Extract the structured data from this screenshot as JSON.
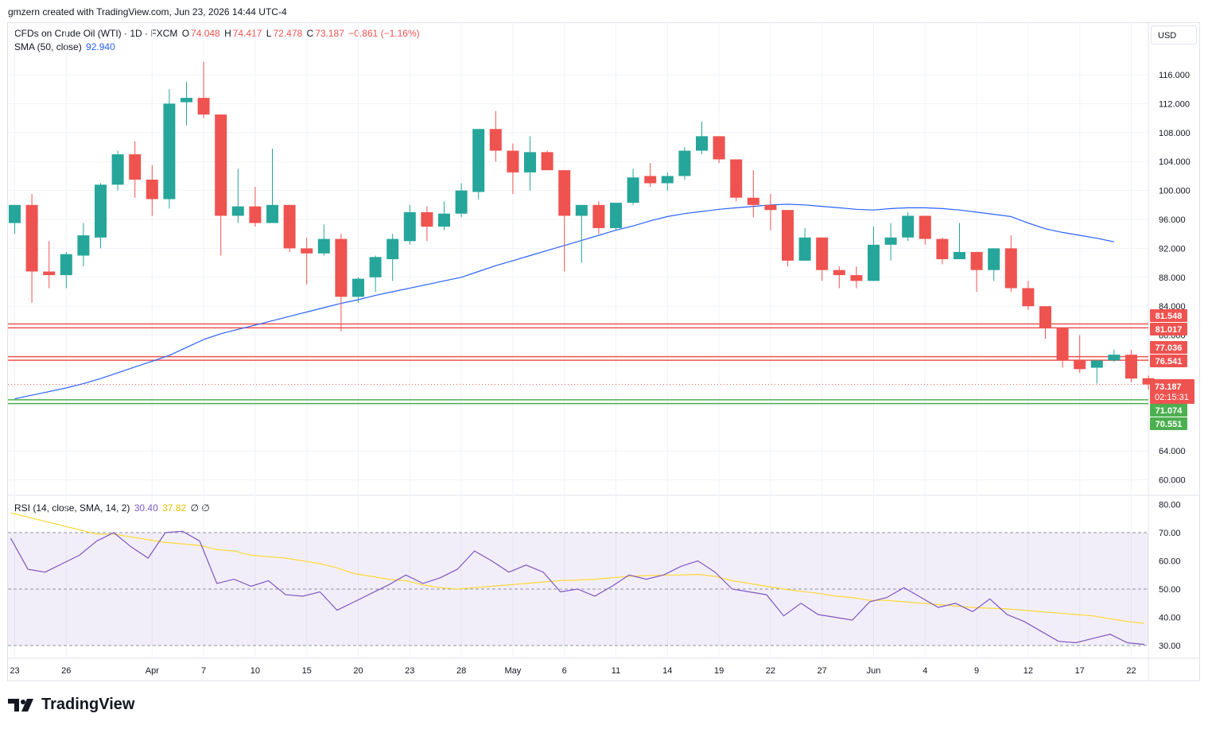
{
  "header": {
    "attribution": "gmzern created with TradingView.com, Jun 23, 2026 14:44 UTC-4"
  },
  "legend": {
    "symbol": "CFDs on Crude Oil (WTI) · 1D · FXCM",
    "o_label": "O",
    "o": "74.048",
    "h_label": "H",
    "h": "74.417",
    "l_label": "L",
    "l": "72.478",
    "c_label": "C",
    "c": "73.187",
    "change": "−0.861 (−1.16%)",
    "sma_label": "SMA (50, close)",
    "sma_value": "92.940",
    "rsi_label": "RSI (14, close, SMA, 14, 2)",
    "rsi_value": "30.40",
    "rsi_ma_value": "37.82",
    "rsi_extra": "∅ ∅"
  },
  "currency": "USD",
  "brand": "TradingView",
  "colors": {
    "up": "#26a69a",
    "down": "#ef5350",
    "sma": "#2962ff",
    "rsi": "#7e57c2",
    "rsi_ma": "#fdd835",
    "resistance": "#ef5350",
    "support": "#4caf50"
  },
  "chart_data": {
    "type": "candlestick",
    "price_axis": {
      "ticks": [
        "116.000",
        "112.000",
        "108.000",
        "104.000",
        "100.000",
        "96.000",
        "92.000",
        "88.000",
        "84.000",
        "80.000",
        "64.000",
        "60.000"
      ],
      "range": [
        58,
        122
      ]
    },
    "x_labels": [
      {
        "label": "23",
        "i": 0
      },
      {
        "label": "26",
        "i": 3
      },
      {
        "label": "Apr",
        "i": 8
      },
      {
        "label": "7",
        "i": 11
      },
      {
        "label": "10",
        "i": 14
      },
      {
        "label": "15",
        "i": 17
      },
      {
        "label": "20",
        "i": 20
      },
      {
        "label": "23",
        "i": 23
      },
      {
        "label": "28",
        "i": 26
      },
      {
        "label": "May",
        "i": 29
      },
      {
        "label": "6",
        "i": 32
      },
      {
        "label": "11",
        "i": 35
      },
      {
        "label": "14",
        "i": 38
      },
      {
        "label": "19",
        "i": 41
      },
      {
        "label": "22",
        "i": 44
      },
      {
        "label": "27",
        "i": 47
      },
      {
        "label": "Jun",
        "i": 50
      },
      {
        "label": "4",
        "i": 53
      },
      {
        "label": "9",
        "i": 56
      },
      {
        "label": "12",
        "i": 59
      },
      {
        "label": "17",
        "i": 62
      },
      {
        "label": "22",
        "i": 65
      }
    ],
    "candles": [
      {
        "o": 95.5,
        "h": 98.0,
        "l": 94.0,
        "c": 98.0
      },
      {
        "o": 98.0,
        "h": 99.5,
        "l": 84.5,
        "c": 88.8
      },
      {
        "o": 88.8,
        "h": 93.0,
        "l": 86.5,
        "c": 88.3
      },
      {
        "o": 88.3,
        "h": 91.5,
        "l": 86.5,
        "c": 91.2
      },
      {
        "o": 91.0,
        "h": 95.5,
        "l": 89.5,
        "c": 93.8
      },
      {
        "o": 93.5,
        "h": 101.0,
        "l": 92.0,
        "c": 100.8
      },
      {
        "o": 100.8,
        "h": 105.5,
        "l": 100.0,
        "c": 105.0
      },
      {
        "o": 105.0,
        "h": 106.8,
        "l": 99.0,
        "c": 101.5
      },
      {
        "o": 101.5,
        "h": 103.5,
        "l": 96.5,
        "c": 98.8
      },
      {
        "o": 98.8,
        "h": 114.0,
        "l": 97.5,
        "c": 112.0
      },
      {
        "o": 112.2,
        "h": 115.0,
        "l": 109.0,
        "c": 112.8
      },
      {
        "o": 112.8,
        "h": 117.8,
        "l": 110.0,
        "c": 110.5
      },
      {
        "o": 110.5,
        "h": 110.5,
        "l": 91.0,
        "c": 96.5
      },
      {
        "o": 96.5,
        "h": 103.0,
        "l": 95.5,
        "c": 97.8
      },
      {
        "o": 97.8,
        "h": 100.5,
        "l": 95.0,
        "c": 95.5
      },
      {
        "o": 95.5,
        "h": 105.8,
        "l": 95.5,
        "c": 98.0
      },
      {
        "o": 98.0,
        "h": 98.0,
        "l": 91.5,
        "c": 92.0
      },
      {
        "o": 92.0,
        "h": 93.5,
        "l": 87.0,
        "c": 91.3
      },
      {
        "o": 91.3,
        "h": 95.3,
        "l": 91.0,
        "c": 93.3
      },
      {
        "o": 93.3,
        "h": 94.0,
        "l": 80.5,
        "c": 85.3
      },
      {
        "o": 85.3,
        "h": 88.0,
        "l": 84.5,
        "c": 87.8
      },
      {
        "o": 88.0,
        "h": 91.0,
        "l": 86.0,
        "c": 90.8
      },
      {
        "o": 90.5,
        "h": 94.0,
        "l": 87.5,
        "c": 93.3
      },
      {
        "o": 93.0,
        "h": 98.0,
        "l": 92.5,
        "c": 97.0
      },
      {
        "o": 97.0,
        "h": 97.8,
        "l": 93.0,
        "c": 95.0
      },
      {
        "o": 95.0,
        "h": 98.5,
        "l": 94.5,
        "c": 96.8
      },
      {
        "o": 96.8,
        "h": 101.0,
        "l": 96.3,
        "c": 100.0
      },
      {
        "o": 99.8,
        "h": 108.5,
        "l": 98.8,
        "c": 108.5
      },
      {
        "o": 108.5,
        "h": 111.0,
        "l": 104.0,
        "c": 105.5
      },
      {
        "o": 105.5,
        "h": 106.5,
        "l": 99.5,
        "c": 102.5
      },
      {
        "o": 102.5,
        "h": 107.5,
        "l": 100.0,
        "c": 105.3
      },
      {
        "o": 105.3,
        "h": 105.5,
        "l": 102.8,
        "c": 102.8
      },
      {
        "o": 102.8,
        "h": 102.8,
        "l": 88.8,
        "c": 96.5
      },
      {
        "o": 96.5,
        "h": 98.0,
        "l": 90.0,
        "c": 98.0
      },
      {
        "o": 98.0,
        "h": 98.5,
        "l": 94.0,
        "c": 94.8
      },
      {
        "o": 94.8,
        "h": 98.0,
        "l": 94.5,
        "c": 98.3
      },
      {
        "o": 98.3,
        "h": 103.0,
        "l": 98.0,
        "c": 101.8
      },
      {
        "o": 102.0,
        "h": 103.8,
        "l": 100.5,
        "c": 101.0
      },
      {
        "o": 101.0,
        "h": 102.5,
        "l": 100.0,
        "c": 102.0
      },
      {
        "o": 102.0,
        "h": 106.0,
        "l": 101.5,
        "c": 105.5
      },
      {
        "o": 105.5,
        "h": 109.5,
        "l": 105.0,
        "c": 107.5
      },
      {
        "o": 107.5,
        "h": 107.5,
        "l": 103.8,
        "c": 104.3
      },
      {
        "o": 104.3,
        "h": 104.3,
        "l": 98.5,
        "c": 99.0
      },
      {
        "o": 99.0,
        "h": 102.8,
        "l": 96.3,
        "c": 98.0
      },
      {
        "o": 98.0,
        "h": 99.5,
        "l": 94.5,
        "c": 97.3
      },
      {
        "o": 97.3,
        "h": 97.3,
        "l": 89.5,
        "c": 90.3
      },
      {
        "o": 90.3,
        "h": 94.8,
        "l": 90.3,
        "c": 93.5
      },
      {
        "o": 93.5,
        "h": 93.5,
        "l": 87.5,
        "c": 89.0
      },
      {
        "o": 89.0,
        "h": 89.5,
        "l": 86.5,
        "c": 88.3
      },
      {
        "o": 88.3,
        "h": 89.5,
        "l": 86.5,
        "c": 87.5
      },
      {
        "o": 87.5,
        "h": 95.0,
        "l": 87.5,
        "c": 92.5
      },
      {
        "o": 92.5,
        "h": 95.5,
        "l": 90.3,
        "c": 93.5
      },
      {
        "o": 93.5,
        "h": 97.0,
        "l": 93.0,
        "c": 96.5
      },
      {
        "o": 96.5,
        "h": 96.5,
        "l": 92.5,
        "c": 93.3
      },
      {
        "o": 93.3,
        "h": 93.5,
        "l": 89.8,
        "c": 90.5
      },
      {
        "o": 90.5,
        "h": 95.5,
        "l": 90.5,
        "c": 91.5
      },
      {
        "o": 91.5,
        "h": 91.5,
        "l": 86.0,
        "c": 89.0
      },
      {
        "o": 89.0,
        "h": 92.0,
        "l": 87.5,
        "c": 92.0
      },
      {
        "o": 92.0,
        "h": 93.8,
        "l": 86.0,
        "c": 86.5
      },
      {
        "o": 86.5,
        "h": 87.5,
        "l": 83.5,
        "c": 84.0
      },
      {
        "o": 84.0,
        "h": 84.0,
        "l": 79.5,
        "c": 81.0
      },
      {
        "o": 81.0,
        "h": 81.0,
        "l": 75.5,
        "c": 76.5
      },
      {
        "o": 76.5,
        "h": 80.0,
        "l": 74.8,
        "c": 75.3
      },
      {
        "o": 75.5,
        "h": 76.5,
        "l": 73.3,
        "c": 76.5
      },
      {
        "o": 76.5,
        "h": 78.0,
        "l": 76.3,
        "c": 77.3
      },
      {
        "o": 77.3,
        "h": 78.0,
        "l": 73.5,
        "c": 74.0
      },
      {
        "o": 74.048,
        "h": 74.417,
        "l": 72.478,
        "c": 73.187
      }
    ],
    "sma": {
      "name": "SMA (50, close)",
      "values": [
        71.2,
        71.7,
        72.2,
        72.7,
        73.3,
        74.0,
        74.8,
        75.6,
        76.4,
        77.2,
        78.3,
        79.4,
        80.2,
        80.8,
        81.4,
        82.0,
        82.6,
        83.2,
        83.8,
        84.4,
        84.9,
        85.5,
        86.0,
        86.5,
        87.0,
        87.5,
        88.0,
        88.8,
        89.6,
        90.3,
        91.0,
        91.7,
        92.4,
        93.1,
        93.8,
        94.5,
        95.1,
        95.8,
        96.4,
        96.8,
        97.1,
        97.4,
        97.6,
        97.8,
        98.0,
        98.1,
        98.0,
        97.8,
        97.6,
        97.4,
        97.3,
        97.5,
        97.6,
        97.6,
        97.5,
        97.3,
        97.0,
        96.7,
        96.4,
        95.5,
        94.7,
        94.2,
        93.8,
        93.4,
        92.9
      ]
    },
    "horizontal_levels": [
      {
        "value": 81.548,
        "label": "81.548",
        "kind": "resistance"
      },
      {
        "value": 81.017,
        "label": "81.017",
        "kind": "resistance"
      },
      {
        "value": 77.036,
        "label": "77.036",
        "kind": "resistance"
      },
      {
        "value": 76.541,
        "label": "76.541",
        "kind": "resistance"
      },
      {
        "value": 71.074,
        "label": "71.074",
        "kind": "support"
      },
      {
        "value": 70.551,
        "label": "70.551",
        "kind": "support"
      }
    ],
    "last_price": {
      "value": 73.187,
      "label": "73.187",
      "countdown": "02:15:31"
    },
    "rsi_axis": {
      "ticks": [
        "80.00",
        "70.00",
        "60.00",
        "50.00",
        "40.00",
        "30.00"
      ],
      "range": [
        27,
        82
      ],
      "band": [
        30,
        70
      ]
    },
    "rsi": {
      "values": [
        68,
        57,
        56,
        59,
        62,
        67,
        70,
        65,
        61,
        70,
        70.5,
        67,
        52,
        53.5,
        51,
        53,
        48,
        47.5,
        49,
        42.5,
        45.5,
        48.5,
        51.5,
        55,
        52,
        54,
        57,
        63.5,
        60,
        56,
        58.5,
        56,
        49,
        50,
        47.5,
        51,
        55,
        53.5,
        55,
        58,
        60,
        56,
        50,
        49,
        48,
        40.5,
        45,
        41,
        40,
        39,
        45.5,
        47,
        50.5,
        47,
        43.5,
        45,
        42,
        46.5,
        41,
        38.5,
        35,
        31.5,
        31,
        32.5,
        34,
        31,
        30.4
      ]
    },
    "rsi_ma": {
      "values": [
        77,
        75.5,
        74,
        72.5,
        71,
        69.5,
        69.5,
        68.5,
        67.5,
        66.5,
        66,
        65.5,
        64,
        63.5,
        62,
        61.5,
        61,
        60,
        59,
        57.5,
        55.5,
        54.5,
        53.5,
        53,
        51.5,
        50.5,
        50,
        50.5,
        51,
        51.5,
        52,
        52.5,
        53,
        53.2,
        53.5,
        54,
        54.5,
        54.8,
        55,
        55,
        55.2,
        54.5,
        53,
        52,
        51,
        50,
        49.2,
        48.5,
        47.5,
        47,
        46,
        46,
        45.5,
        45,
        44.5,
        44,
        43.5,
        43.2,
        43,
        42.5,
        42,
        41.5,
        41,
        40.5,
        39.5,
        38.5,
        37.82
      ]
    }
  }
}
